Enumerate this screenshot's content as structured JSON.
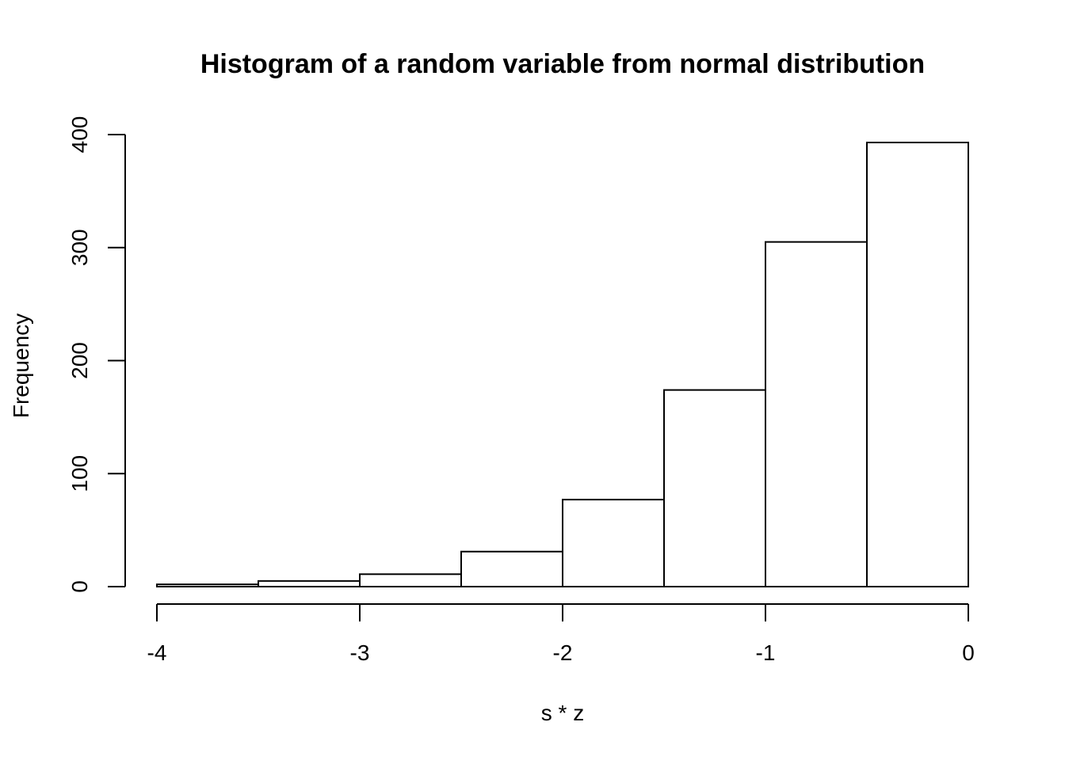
{
  "chart_data": {
    "type": "bar",
    "title": "Histogram of a random variable from normal distribution",
    "xlabel": "s * z",
    "ylabel": "Frequency",
    "bins": [
      {
        "from": -4.0,
        "to": -3.5,
        "count": 2
      },
      {
        "from": -3.5,
        "to": -3.0,
        "count": 5
      },
      {
        "from": -3.0,
        "to": -2.5,
        "count": 11
      },
      {
        "from": -2.5,
        "to": -2.0,
        "count": 31
      },
      {
        "from": -2.0,
        "to": -1.5,
        "count": 77
      },
      {
        "from": -1.5,
        "to": -1.0,
        "count": 174
      },
      {
        "from": -1.0,
        "to": -0.5,
        "count": 305
      },
      {
        "from": -0.5,
        "to": 0.0,
        "count": 393
      }
    ],
    "x_ticks": [
      -4,
      -3,
      -2,
      -1,
      0
    ],
    "x_tick_labels": [
      "-4",
      "-3",
      "-2",
      "-1",
      "0"
    ],
    "y_ticks": [
      0,
      100,
      200,
      300,
      400
    ],
    "y_tick_labels": [
      "0",
      "100",
      "200",
      "300",
      "400"
    ],
    "xlim": [
      -4,
      0
    ],
    "ylim": [
      0,
      400
    ],
    "grid": false,
    "legend": "none",
    "colors": {
      "bar_fill": "#ffffff",
      "bar_stroke": "#000000"
    }
  }
}
